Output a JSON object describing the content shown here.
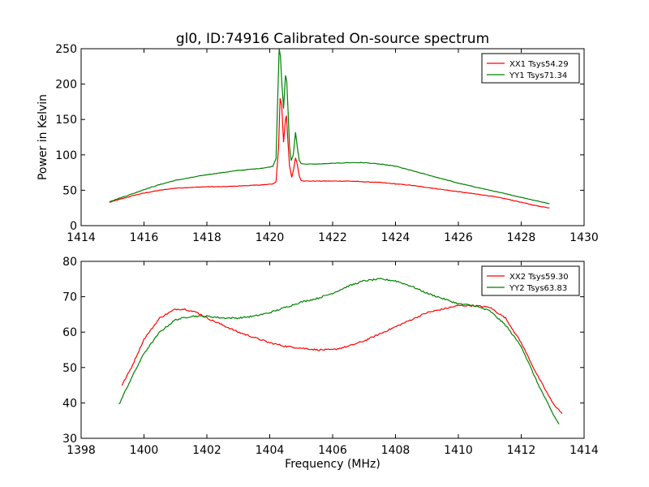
{
  "title": "gl0, ID:74916 Calibrated On-source spectrum",
  "chart_data": [
    {
      "type": "line",
      "ylabel": "Power in Kelvin",
      "xlabel": "",
      "xlim": [
        1414,
        1430
      ],
      "ylim": [
        0,
        250
      ],
      "xticks": [
        "1414",
        "1416",
        "1418",
        "1420",
        "1422",
        "1424",
        "1426",
        "1428",
        "1430"
      ],
      "yticks": [
        "0",
        "50",
        "100",
        "150",
        "200",
        "250"
      ],
      "legend_position": "top-right",
      "grid": false,
      "series": [
        {
          "name": "XX1 Tsys54.29",
          "color": "#ff0000",
          "x": [
            1414.9,
            1415.3,
            1415.7,
            1416.0,
            1416.5,
            1417.0,
            1417.5,
            1418.0,
            1418.5,
            1419.0,
            1419.5,
            1419.9,
            1420.1,
            1420.2,
            1420.28,
            1420.33,
            1420.38,
            1420.44,
            1420.5,
            1420.53,
            1420.58,
            1420.63,
            1420.7,
            1420.76,
            1420.82,
            1420.88,
            1420.94,
            1421.0,
            1421.1,
            1421.5,
            1422.0,
            1422.5,
            1423.0,
            1423.5,
            1424.0,
            1424.5,
            1425.0,
            1425.5,
            1426.0,
            1426.5,
            1427.0,
            1427.5,
            1428.0,
            1428.5,
            1428.9
          ],
          "y": [
            33,
            38,
            43,
            46,
            50,
            53,
            54,
            55,
            55,
            56,
            57,
            58,
            59,
            62,
            110,
            180,
            170,
            118,
            150,
            155,
            118,
            84,
            68,
            80,
            96,
            86,
            70,
            64,
            63,
            63,
            63,
            63,
            62,
            61,
            59,
            57,
            54,
            51,
            48,
            45,
            42,
            38,
            33,
            28,
            25
          ]
        },
        {
          "name": "YY1 Tsys71.34",
          "color": "#008000",
          "x": [
            1414.9,
            1415.3,
            1415.7,
            1416.0,
            1416.5,
            1417.0,
            1417.5,
            1418.0,
            1418.5,
            1419.0,
            1419.5,
            1419.9,
            1420.1,
            1420.2,
            1420.26,
            1420.3,
            1420.34,
            1420.38,
            1420.44,
            1420.5,
            1420.54,
            1420.58,
            1420.63,
            1420.68,
            1420.75,
            1420.82,
            1420.88,
            1420.94,
            1421.0,
            1421.1,
            1421.5,
            1422.0,
            1422.5,
            1423.0,
            1423.5,
            1424.0,
            1424.5,
            1425.0,
            1425.5,
            1426.0,
            1426.5,
            1427.0,
            1427.5,
            1428.0,
            1428.5,
            1428.9
          ],
          "y": [
            34,
            40,
            46,
            51,
            58,
            64,
            68,
            72,
            75,
            78,
            80,
            82,
            84,
            95,
            190,
            250,
            240,
            205,
            165,
            212,
            205,
            165,
            112,
            92,
            100,
            132,
            110,
            92,
            88,
            87,
            87,
            88,
            89,
            89,
            87,
            84,
            78,
            72,
            66,
            60,
            55,
            50,
            45,
            40,
            35,
            31
          ]
        }
      ]
    },
    {
      "type": "line",
      "ylabel": "",
      "xlabel": "Frequency (MHz)",
      "xlim": [
        1398,
        1414
      ],
      "ylim": [
        30,
        80
      ],
      "xticks": [
        "1398",
        "1400",
        "1402",
        "1404",
        "1406",
        "1408",
        "1410",
        "1412",
        "1414"
      ],
      "yticks": [
        "30",
        "40",
        "50",
        "60",
        "70",
        "80"
      ],
      "legend_position": "top-right",
      "grid": false,
      "series": [
        {
          "name": "XX2 Tsys59.30",
          "color": "#ff0000",
          "x": [
            1399.3,
            1399.6,
            1400.0,
            1400.5,
            1401.0,
            1401.3,
            1401.7,
            1402.0,
            1402.5,
            1403.0,
            1403.5,
            1404.0,
            1404.5,
            1405.0,
            1405.5,
            1406.0,
            1406.5,
            1407.0,
            1407.5,
            1408.0,
            1408.5,
            1409.0,
            1409.5,
            1410.0,
            1410.5,
            1411.0,
            1411.5,
            1412.0,
            1412.5,
            1413.0,
            1413.3
          ],
          "y": [
            45,
            50,
            58,
            64,
            66.5,
            66.5,
            65.5,
            64,
            62,
            60,
            58.5,
            57,
            56,
            55.5,
            55,
            55,
            56,
            57.5,
            59.5,
            61.5,
            63.5,
            65.5,
            66.5,
            67.5,
            67.5,
            67,
            64,
            57,
            48,
            40,
            37
          ]
        },
        {
          "name": "YY2 Tsys63.83",
          "color": "#008000",
          "x": [
            1399.2,
            1399.6,
            1400.0,
            1400.5,
            1401.0,
            1401.5,
            1402.0,
            1402.5,
            1403.0,
            1403.5,
            1404.0,
            1404.5,
            1405.0,
            1405.5,
            1406.0,
            1406.5,
            1407.0,
            1407.5,
            1408.0,
            1408.5,
            1409.0,
            1409.5,
            1410.0,
            1410.5,
            1411.0,
            1411.5,
            1412.0,
            1412.5,
            1413.0,
            1413.2
          ],
          "y": [
            39.5,
            47,
            54,
            60,
            63.5,
            64.5,
            64.5,
            64,
            64,
            64.5,
            65.5,
            67,
            68.5,
            69.5,
            71,
            73,
            74.5,
            75,
            74.5,
            73,
            71,
            69.5,
            68,
            67.5,
            66,
            62,
            56,
            46,
            37,
            34
          ]
        }
      ]
    }
  ]
}
